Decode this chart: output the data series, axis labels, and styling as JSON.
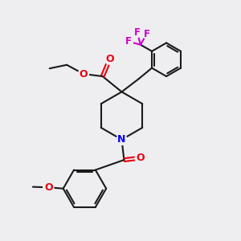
{
  "bg_color": "#eeeef0",
  "bond_color": "#1a1a1a",
  "bond_width": 1.5,
  "o_color": "#e8000d",
  "n_color": "#0000ff",
  "f_color": "#cc00cc",
  "figsize": [
    3.0,
    3.0
  ],
  "dpi": 100,
  "xlim": [
    0,
    10
  ],
  "ylim": [
    0,
    10
  ]
}
